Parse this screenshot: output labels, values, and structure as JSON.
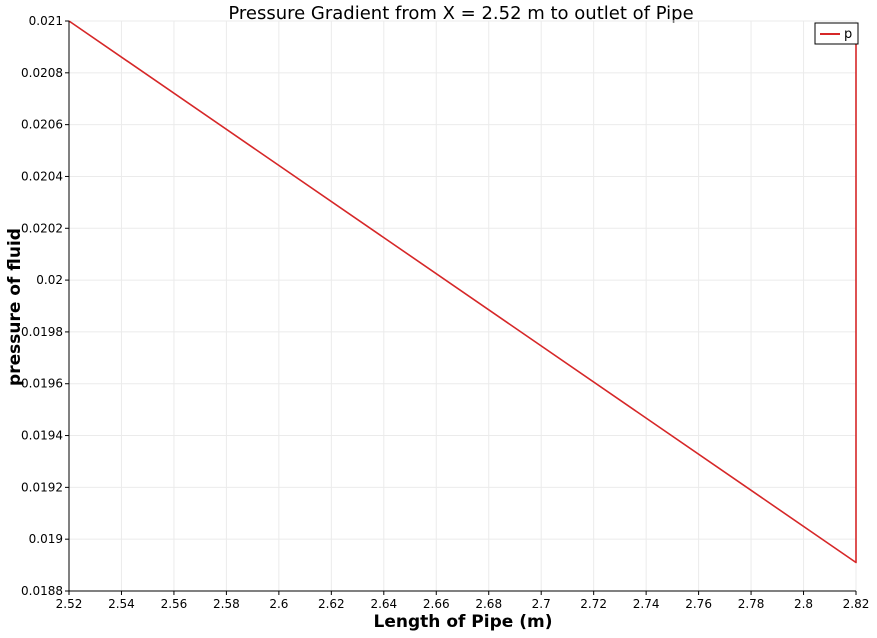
{
  "chart_data": {
    "type": "line",
    "title": "Pressure Gradient from X = 2.52 m to outlet of Pipe",
    "xlabel": "Length of Pipe (m)",
    "ylabel": "pressure of fluid",
    "xlim": [
      2.52,
      2.82
    ],
    "ylim": [
      0.0188,
      0.021
    ],
    "x_ticks": [
      "2.52",
      "2.54",
      "2.56",
      "2.58",
      "2.6",
      "2.62",
      "2.64",
      "2.66",
      "2.68",
      "2.7",
      "2.72",
      "2.74",
      "2.76",
      "2.78",
      "2.8",
      "2.82"
    ],
    "y_ticks": [
      "0.0188",
      "0.019",
      "0.0192",
      "0.0194",
      "0.0196",
      "0.0198",
      "0.02",
      "0.0202",
      "0.0204",
      "0.0206",
      "0.0208",
      "0.021"
    ],
    "grid": true,
    "legend_position": "top-right",
    "series": [
      {
        "name": "p",
        "color": "#d62728",
        "x": [
          2.52,
          2.82,
          2.82,
          2.82
        ],
        "y": [
          0.021,
          0.01891,
          0.01892,
          0.02094
        ]
      }
    ]
  }
}
